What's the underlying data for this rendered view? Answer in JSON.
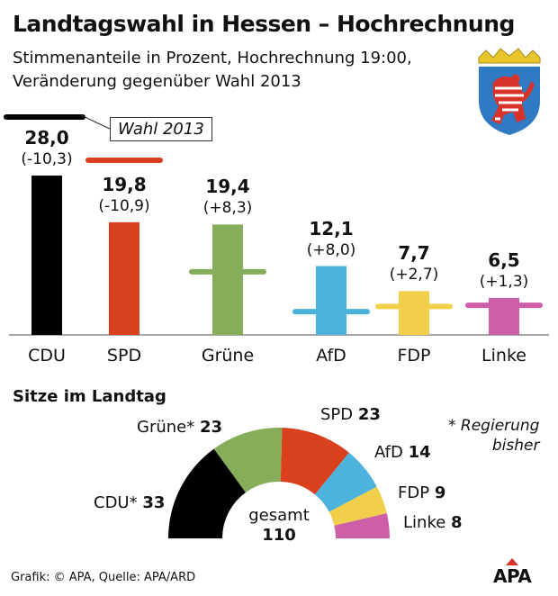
{
  "title": "Landtagswahl in Hessen – Hochrechnung",
  "subtitle_line1": "Stimmenanteile in Prozent, Hochrechnung 19:00,",
  "subtitle_line2": "Veränderung gegenüber Wahl 2013",
  "chart_data": [
    {
      "type": "bar",
      "categories": [
        "CDU",
        "SPD",
        "Grüne",
        "AfD",
        "FDP",
        "Linke"
      ],
      "values": [
        28.0,
        19.8,
        19.4,
        12.1,
        7.7,
        6.5
      ],
      "value_labels": [
        "28,0",
        "19,8",
        "19,4",
        "12,1",
        "7,7",
        "6,5"
      ],
      "changes": [
        "(-10,3)",
        "(-10,9)",
        "(+8,3)",
        "(+8,0)",
        "(+2,7)",
        "(+1,3)"
      ],
      "previous_2013": [
        38.3,
        30.7,
        11.1,
        4.1,
        5.0,
        5.2
      ],
      "previous_label": "Wahl 2013",
      "colors": [
        "#000000",
        "#d8401e",
        "#86ae5a",
        "#4db2dc",
        "#f1cf4a",
        "#cd5fa6"
      ],
      "grid": false
    },
    {
      "type": "pie",
      "subtype": "hemicycle",
      "title": "Sitze im Landtag",
      "categories": [
        "CDU*",
        "Grüne*",
        "SPD",
        "AfD",
        "FDP",
        "Linke"
      ],
      "values": [
        33,
        23,
        23,
        14,
        9,
        8
      ],
      "colors": [
        "#000000",
        "#86ae5a",
        "#d8401e",
        "#4db2dc",
        "#f1cf4a",
        "#cd5fa6"
      ],
      "total_label": "gesamt",
      "total": "110",
      "note_line1": "* Regierung",
      "note_line2": "bisher"
    }
  ],
  "source": "Grafik: © APA, Quelle: APA/ARD",
  "logo": "APA"
}
